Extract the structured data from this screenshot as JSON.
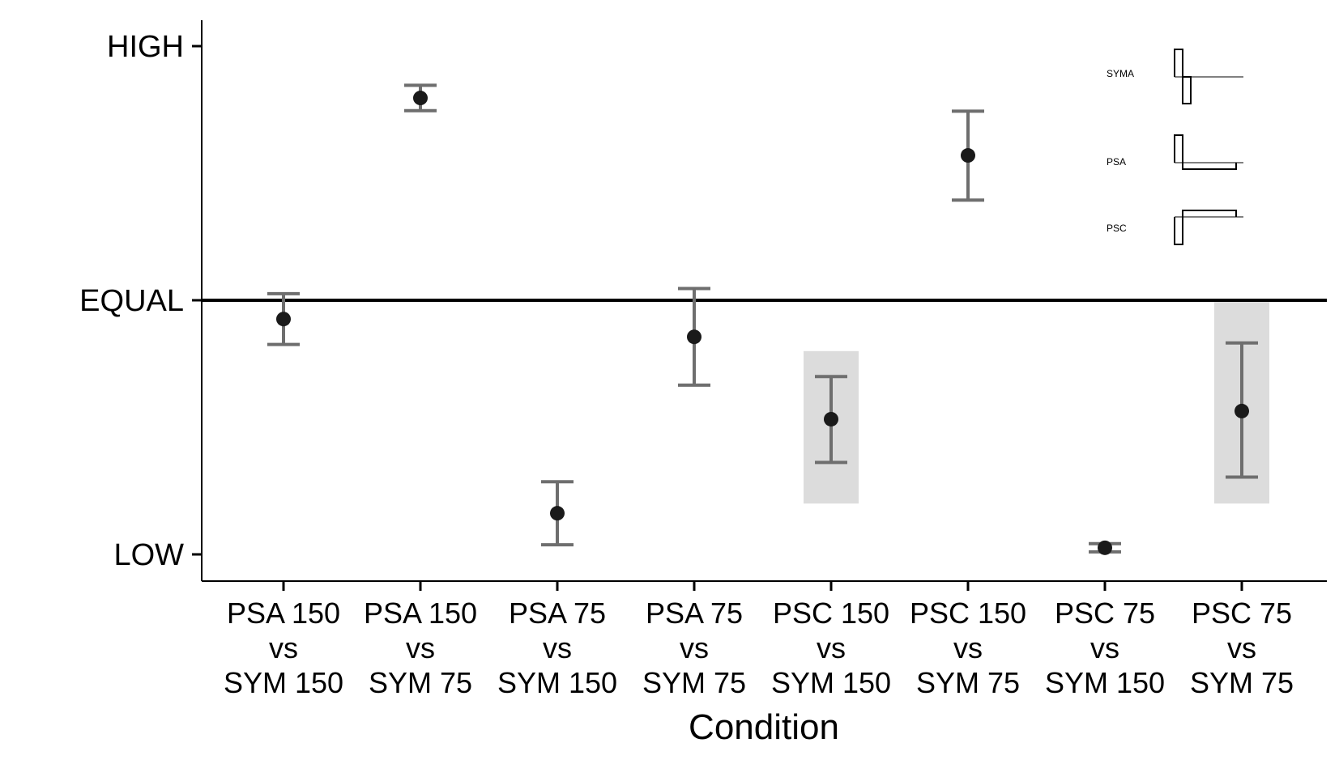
{
  "chart_data": {
    "type": "scatter",
    "title": "",
    "xlabel": "Condition",
    "ylabel": "",
    "ylim": [
      0,
      1
    ],
    "yticks": [
      {
        "value": 0,
        "label": "LOW"
      },
      {
        "value": 0.5,
        "label": "EQUAL"
      },
      {
        "value": 1,
        "label": "HIGH"
      }
    ],
    "reference_line": 0.5,
    "categories": [
      [
        "PSA 150",
        "vs",
        "SYM 150"
      ],
      [
        "PSA 150",
        "vs",
        "SYM 75"
      ],
      [
        "PSA 75",
        "vs",
        "SYM 150"
      ],
      [
        "PSA 75",
        "vs",
        "SYM 75"
      ],
      [
        "PSC 150",
        "vs",
        "SYM 150"
      ],
      [
        "PSC 150",
        "vs",
        "SYM 75"
      ],
      [
        "PSC 75",
        "vs",
        "SYM 150"
      ],
      [
        "PSC 75",
        "vs",
        "SYM 75"
      ]
    ],
    "points": [
      {
        "y": 0.463,
        "lower": 0.413,
        "upper": 0.513,
        "highlight": false
      },
      {
        "y": 0.898,
        "lower": 0.873,
        "upper": 0.923,
        "highlight": false
      },
      {
        "y": 0.081,
        "lower": 0.019,
        "upper": 0.143,
        "highlight": false
      },
      {
        "y": 0.428,
        "lower": 0.333,
        "upper": 0.523,
        "highlight": false
      },
      {
        "y": 0.266,
        "lower": 0.181,
        "upper": 0.35,
        "highlight": true
      },
      {
        "y": 0.785,
        "lower": 0.697,
        "upper": 0.872,
        "highlight": false
      },
      {
        "y": 0.013,
        "lower": 0.005,
        "upper": 0.021,
        "highlight": false
      },
      {
        "y": 0.282,
        "lower": 0.152,
        "upper": 0.416,
        "highlight": true
      }
    ],
    "highlight_band": [
      0.1,
      0.5
    ],
    "grid": false,
    "colors": {
      "point": "#1a1a1a",
      "errorbar": "#6e6e6e",
      "highlight": "#dcdcdc",
      "axis": "#000000"
    }
  },
  "inset_legend": {
    "items": [
      {
        "label": "SYMA",
        "shape": "syma"
      },
      {
        "label": "PSA",
        "shape": "psa"
      },
      {
        "label": "PSC",
        "shape": "psc"
      }
    ]
  }
}
